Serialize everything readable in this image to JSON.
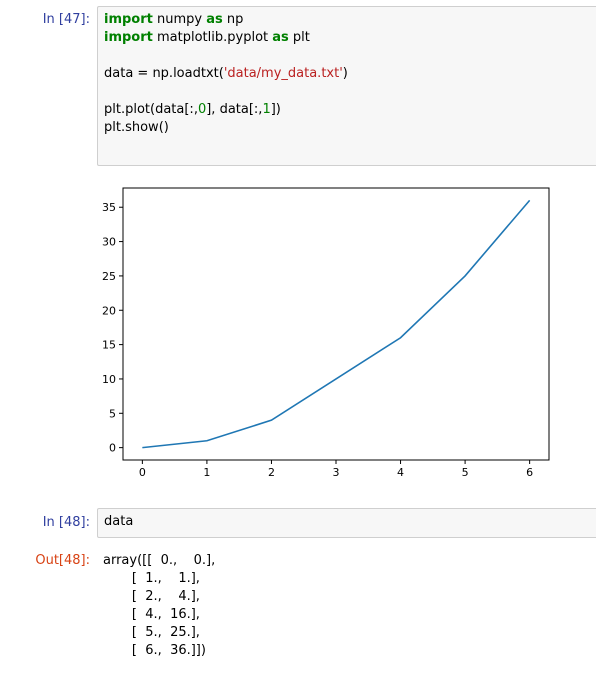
{
  "cells": [
    {
      "prompt": "In [47]:",
      "code_lines": [
        [
          {
            "t": "import",
            "c": "kw"
          },
          {
            "t": " numpy "
          },
          {
            "t": "as",
            "c": "kw"
          },
          {
            "t": " np"
          }
        ],
        [
          {
            "t": "import",
            "c": "kw"
          },
          {
            "t": " matplotlib.pyplot "
          },
          {
            "t": "as",
            "c": "kw"
          },
          {
            "t": " plt"
          }
        ],
        [],
        [
          {
            "t": "data = np.loadtxt("
          },
          {
            "t": "'data/my_data.txt'",
            "c": "str"
          },
          {
            "t": ")"
          }
        ],
        [],
        [
          {
            "t": "plt.plot(data[:,"
          },
          {
            "t": "0",
            "c": "num"
          },
          {
            "t": "], data[:,"
          },
          {
            "t": "1",
            "c": "num"
          },
          {
            "t": "])"
          }
        ],
        [
          {
            "t": "plt.show()"
          }
        ]
      ]
    },
    {
      "prompt": "In [48]:",
      "code_lines": [
        [
          {
            "t": "data"
          }
        ]
      ]
    }
  ],
  "output": {
    "prompt": "Out[48]:",
    "lines": [
      "array([[  0.,    0.],",
      "       [  1.,    1.],",
      "       [  2.,    4.],",
      "       [  4.,  16.],",
      "       [  5.,  25.],",
      "       [  6.,  36.]])"
    ]
  },
  "chart_data": {
    "type": "line",
    "x": [
      0,
      1,
      2,
      4,
      5,
      6
    ],
    "series": [
      {
        "values": [
          0,
          1,
          4,
          16,
          25,
          36
        ],
        "color": "#1f77b4"
      }
    ],
    "x_ticks": [
      "0",
      "1",
      "2",
      "3",
      "4",
      "5",
      "6"
    ],
    "y_ticks": [
      "0",
      "5",
      "10",
      "15",
      "20",
      "25",
      "30",
      "35"
    ],
    "xlim": [
      -0.3,
      6.3
    ],
    "ylim": [
      -1.8,
      37.8
    ],
    "grid": false
  }
}
